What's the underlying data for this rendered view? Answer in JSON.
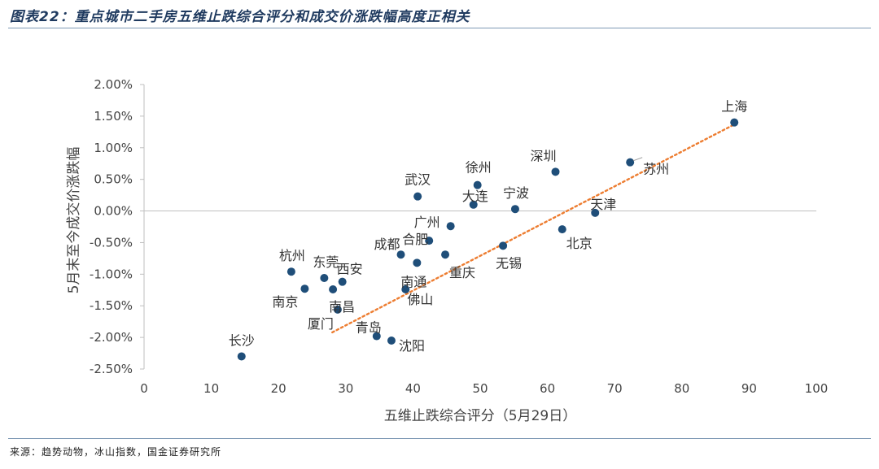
{
  "header": {
    "title": "图表22：重点城市二手房五维止跌综合评分和成交价涨跌幅高度正相关"
  },
  "footer": {
    "source": "来源：趋势动物，冰山指数，国金证券研究所"
  },
  "colors": {
    "point": "#1f4e79",
    "trend": "#ed7d31",
    "axis": "#bfbfbf"
  },
  "chart_data": {
    "type": "scatter",
    "xlabel": "五维止跌综合评分（5月29日）",
    "ylabel": "5月末至今成交价涨跌幅",
    "xlim": [
      0,
      100
    ],
    "ylim": [
      -2.5,
      2.0
    ],
    "x_ticks": [
      0,
      10,
      20,
      30,
      40,
      50,
      60,
      70,
      80,
      90,
      100
    ],
    "x_tick_labels": [
      "0",
      "10",
      "20",
      "30",
      "40",
      "50",
      "60",
      "70",
      "80",
      "90",
      "100"
    ],
    "y_ticks": [
      2.0,
      1.5,
      1.0,
      0.5,
      0.0,
      -0.5,
      -1.0,
      -1.5,
      -2.0,
      -2.5
    ],
    "y_tick_labels": [
      "2.00%",
      "1.50%",
      "1.00%",
      "0.50%",
      "0.00%",
      "-0.50%",
      "-1.00%",
      "-1.50%",
      "-2.00%",
      "-2.50%"
    ],
    "y_unit": "%",
    "trendline": {
      "style": "dotted-linear",
      "from": [
        28,
        -1.92
      ],
      "to": [
        88,
        1.38
      ]
    },
    "points": [
      {
        "label": "上海",
        "x": 87.8,
        "y": 1.4
      },
      {
        "label": "苏州",
        "x": 72.3,
        "y": 0.77
      },
      {
        "label": "深圳",
        "x": 61.2,
        "y": 0.62
      },
      {
        "label": "天津",
        "x": 67.1,
        "y": -0.03
      },
      {
        "label": "北京",
        "x": 62.2,
        "y": -0.29
      },
      {
        "label": "宁波",
        "x": 55.2,
        "y": 0.03
      },
      {
        "label": "无锡",
        "x": 53.4,
        "y": -0.55
      },
      {
        "label": "徐州",
        "x": 49.6,
        "y": 0.41
      },
      {
        "label": "大连",
        "x": 49.0,
        "y": 0.1
      },
      {
        "label": "武汉",
        "x": 40.7,
        "y": 0.23
      },
      {
        "label": "广州",
        "x": 45.6,
        "y": -0.24
      },
      {
        "label": "合肥",
        "x": 42.4,
        "y": -0.47
      },
      {
        "label": "重庆",
        "x": 44.8,
        "y": -0.69
      },
      {
        "label": "成都",
        "x": 38.2,
        "y": -0.69
      },
      {
        "label": "南通",
        "x": 40.6,
        "y": -0.82
      },
      {
        "label": "佛山",
        "x": 38.9,
        "y": -1.24
      },
      {
        "label": "杭州",
        "x": 21.9,
        "y": -0.96
      },
      {
        "label": "东莞",
        "x": 26.8,
        "y": -1.06
      },
      {
        "label": "西安",
        "x": 29.5,
        "y": -1.12
      },
      {
        "label": "南京",
        "x": 23.9,
        "y": -1.23
      },
      {
        "label": "南昌",
        "x": 28.1,
        "y": -1.24
      },
      {
        "label": "厦门",
        "x": 28.8,
        "y": -1.56
      },
      {
        "label": "青岛",
        "x": 34.6,
        "y": -1.98
      },
      {
        "label": "沈阳",
        "x": 36.8,
        "y": -2.05
      },
      {
        "label": "长沙",
        "x": 14.5,
        "y": -2.3
      }
    ]
  }
}
